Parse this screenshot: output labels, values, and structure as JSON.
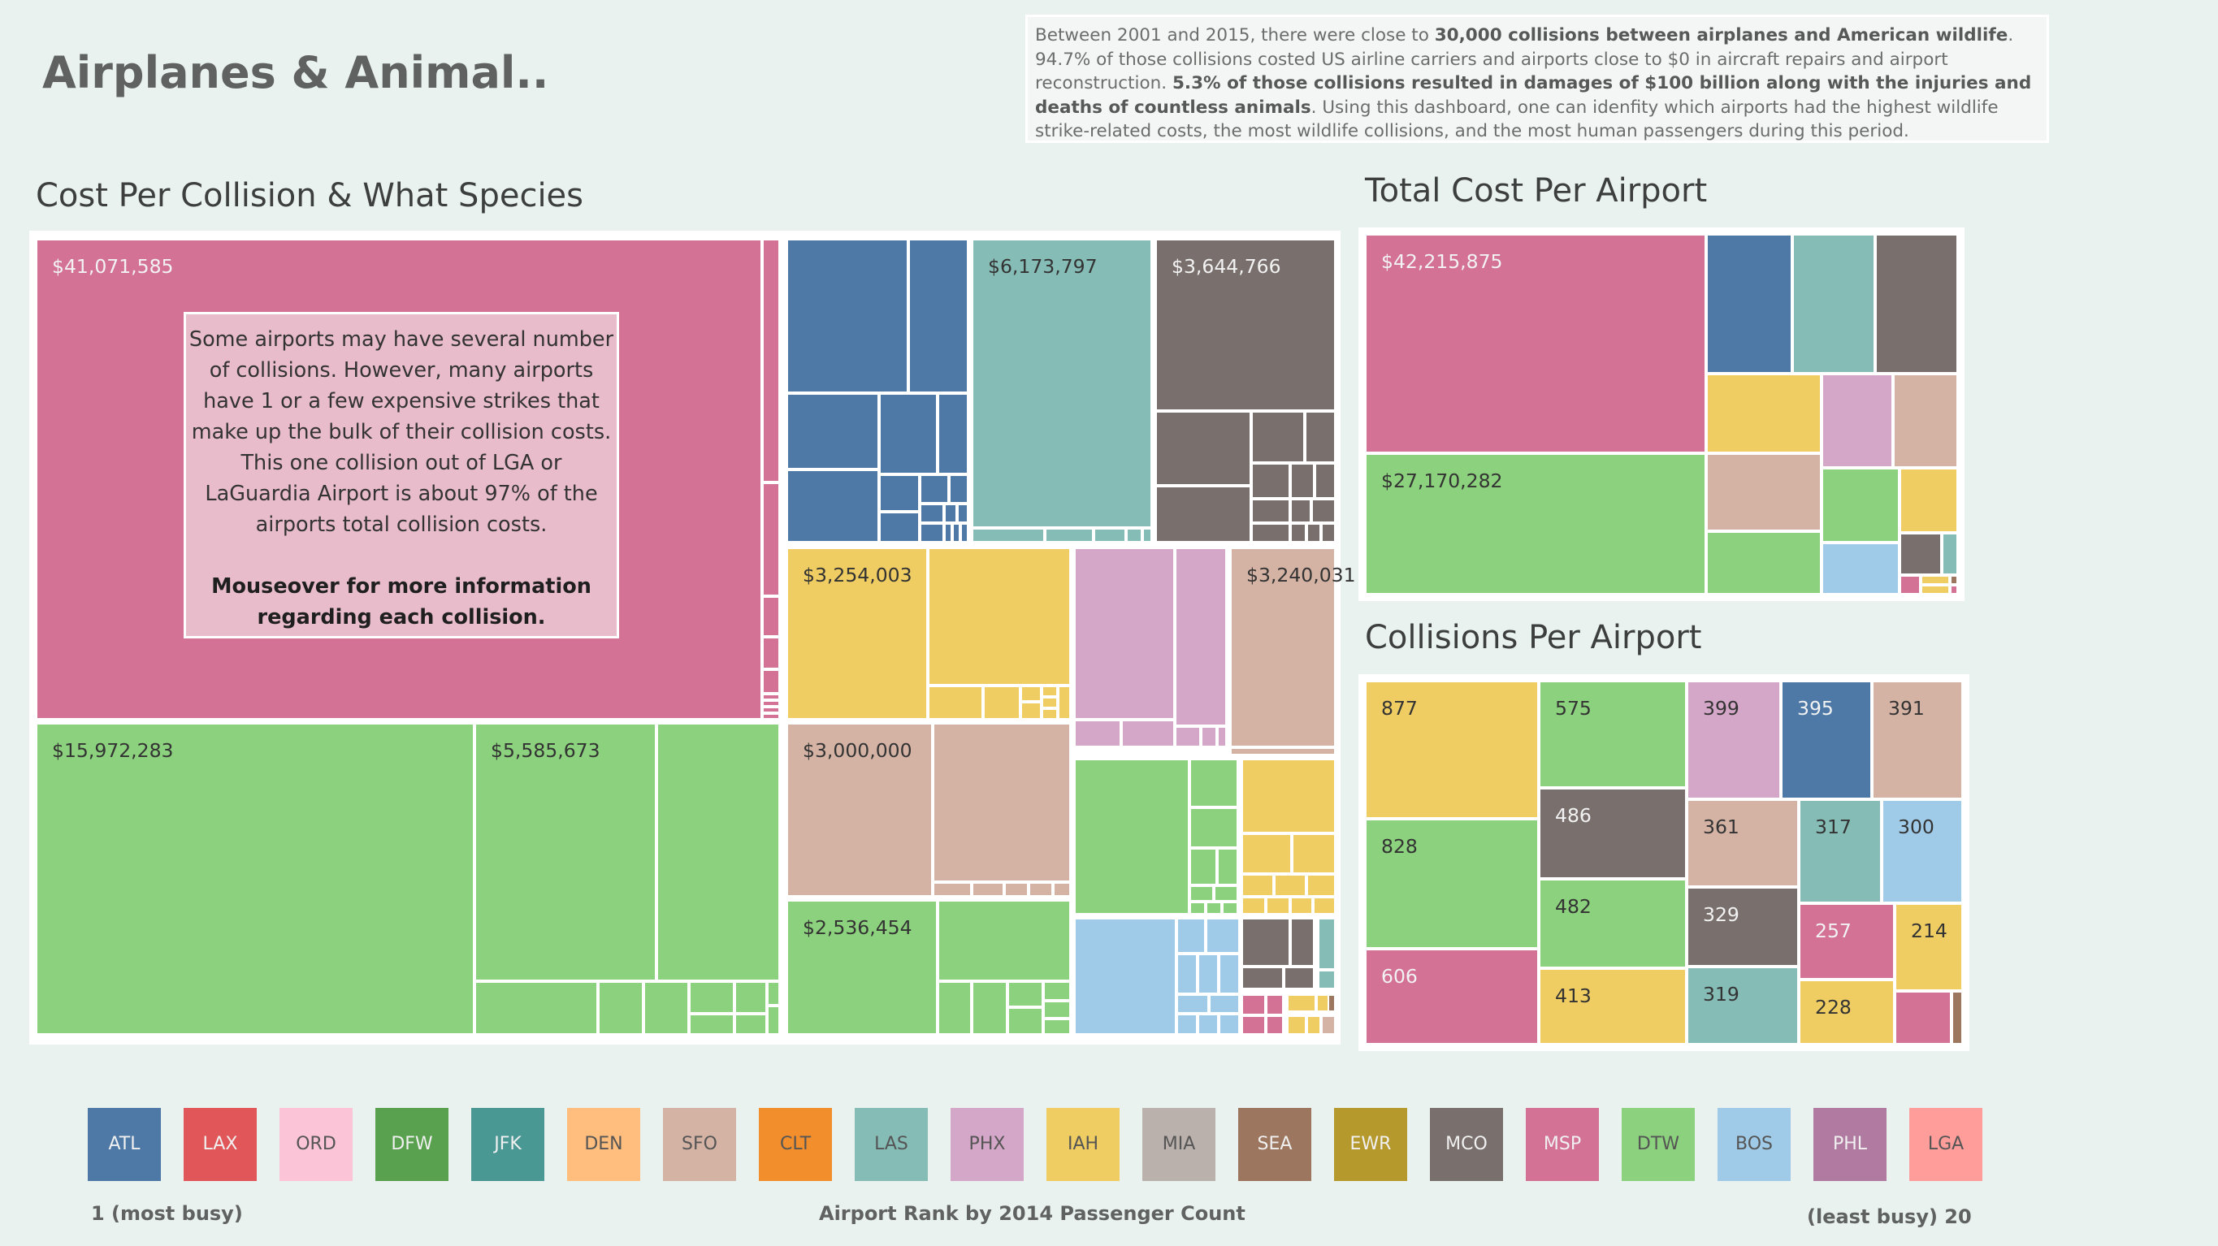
{
  "title": "Airplanes & Animal..",
  "summary": {
    "p1": "Between 2001 and 2015, there were close to ",
    "b1": "30,000 collisions between airplanes and American wildlife",
    "p2": ". 94.7% of those collisions costed US airline carriers and airports close to $0 in aircraft repairs and airport reconstruction. ",
    "b2": "5.3% of those collisions resulted in damages of $100 billion along with the injuries and deaths of countless animals",
    "p3": ". Using this dashboard, one can idenfity which airports had the highest wildlife strike-related costs, the most wildlife collisions, and the most human passengers during this period."
  },
  "colors": {
    "ATL": "#4e79a7",
    "LAX": "#e15759",
    "ORD": "#fbc4d7",
    "DFW": "#59a14f",
    "JFK": "#499894",
    "DEN": "#ffbe7d",
    "SFO": "#d4b3a5",
    "CLT": "#f28e2b",
    "LAS": "#86bcb6",
    "PHX": "#d4a6c8",
    "IAH": "#efcd62",
    "MIA": "#bab0ac",
    "SEA": "#9d7660",
    "EWR": "#b6992d",
    "MCO": "#79706e",
    "MSP": "#d37295",
    "DTW": "#8cd17d",
    "BOS": "#a0cbe8",
    "PHL": "#b07aa1",
    "LGA": "#ff9d9a"
  },
  "callout": {
    "lines": [
      "Some airports may have several number",
      "of collisions. However, many airports",
      "have 1 or a few  expensive strikes that",
      "make up the bulk of their collision costs.",
      "This one collision out of LGA or",
      "LaGuardia Airport is about 97% of the",
      "airports total collision costs."
    ],
    "mouseover_1": "Mouseover for more information",
    "mouseover_2": "regarding each collision."
  },
  "legend": {
    "airports": [
      "ATL",
      "LAX",
      "ORD",
      "DFW",
      "JFK",
      "DEN",
      "SFO",
      "CLT",
      "LAS",
      "PHX",
      "IAH",
      "MIA",
      "SEA",
      "EWR",
      "MCO",
      "MSP",
      "DTW",
      "BOS",
      "PHL",
      "LGA"
    ],
    "caption_left": "1 (most busy)",
    "caption_center": "Airport Rank by 2014 Passenger Count",
    "caption_right": "(least busy) 20"
  },
  "chart_data": [
    {
      "type": "treemap",
      "title": "Cost Per Collision & What Species",
      "value_format": "$",
      "groups": [
        {
          "airport": "MSP",
          "labels": [
            "$41,071,585"
          ]
        },
        {
          "airport": "DTW",
          "labels": [
            "$15,972,283",
            "$5,585,673",
            "$2,536,454"
          ]
        },
        {
          "airport": "ATL",
          "labels": []
        },
        {
          "airport": "LAS",
          "labels": [
            "$6,173,797"
          ]
        },
        {
          "airport": "MCO",
          "labels": [
            "$3,644,766"
          ]
        },
        {
          "airport": "IAH",
          "labels": [
            "$3,254,003"
          ]
        },
        {
          "airport": "PHX",
          "labels": []
        },
        {
          "airport": "SFO",
          "labels": [
            "$3,240,031",
            "$3,000,000"
          ]
        },
        {
          "airport": "BOS",
          "labels": []
        }
      ]
    },
    {
      "type": "treemap",
      "title": "Total Cost Per Airport",
      "value_format": "$",
      "labeled": [
        {
          "airport": "MSP",
          "value": 42215875,
          "label": "$42,215,875"
        },
        {
          "airport": "DTW",
          "value": 27170282,
          "label": "$27,170,282"
        }
      ]
    },
    {
      "type": "treemap",
      "title": "Collisions Per Airport",
      "items": [
        {
          "airport": "IAH",
          "value": 877,
          "label": "877"
        },
        {
          "airport": "DTW",
          "value": 828,
          "label": "828"
        },
        {
          "airport": "MSP",
          "value": 606,
          "label": "606"
        },
        {
          "airport": "DTW",
          "value": 575,
          "label": "575"
        },
        {
          "airport": "MCO",
          "value": 486,
          "label": "486"
        },
        {
          "airport": "DTW",
          "value": 482,
          "label": "482"
        },
        {
          "airport": "IAH",
          "value": 413,
          "label": "413"
        },
        {
          "airport": "PHX",
          "value": 399,
          "label": "399"
        },
        {
          "airport": "ATL",
          "value": 395,
          "label": "395"
        },
        {
          "airport": "SFO",
          "value": 391,
          "label": "391"
        },
        {
          "airport": "SFO",
          "value": 361,
          "label": "361"
        },
        {
          "airport": "MCO",
          "value": 329,
          "label": "329"
        },
        {
          "airport": "LAS",
          "value": 319,
          "label": "319"
        },
        {
          "airport": "LAS",
          "value": 317,
          "label": "317"
        },
        {
          "airport": "BOS",
          "value": 300,
          "label": "300"
        },
        {
          "airport": "MSP",
          "value": 257,
          "label": "257"
        },
        {
          "airport": "IAH",
          "value": 228,
          "label": "228"
        },
        {
          "airport": "IAH",
          "value": 214,
          "label": "214"
        }
      ]
    }
  ]
}
